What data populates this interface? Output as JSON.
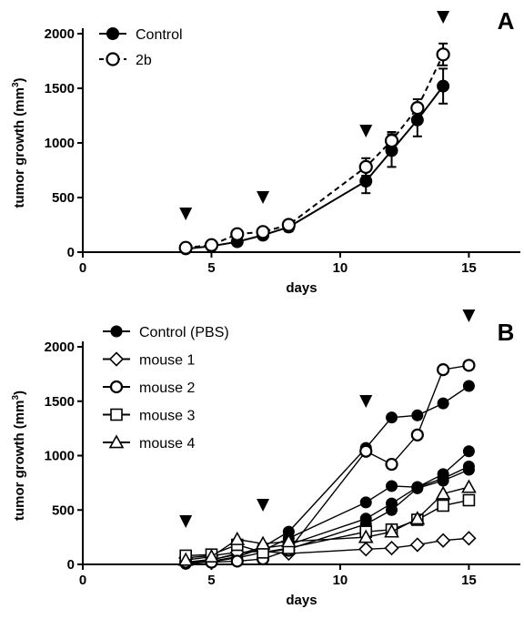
{
  "chart_data": [
    {
      "panel": "A",
      "type": "line",
      "xlabel": "days",
      "ylabel": "tumor growth (mm",
      "ylabel_sup": "3",
      "ylabel_close": ")",
      "xlim": [
        0,
        17
      ],
      "ylim": [
        0,
        2000
      ],
      "xticks": [
        0,
        5,
        10,
        15
      ],
      "yticks": [
        0,
        500,
        1000,
        1500,
        2000
      ],
      "legend_position": "top-left",
      "arrowheads_x": [
        4,
        7,
        11,
        14
      ],
      "series": [
        {
          "name": "Control",
          "marker": "filled-circle",
          "line": "solid",
          "x": [
            4,
            5,
            6,
            7,
            8,
            11,
            12,
            13,
            14
          ],
          "y": [
            30,
            55,
            95,
            155,
            230,
            650,
            930,
            1210,
            1520
          ],
          "err": [
            10,
            10,
            15,
            25,
            40,
            110,
            150,
            150,
            160
          ]
        },
        {
          "name": "2b",
          "marker": "open-circle",
          "line": "dashed",
          "x": [
            4,
            5,
            6,
            7,
            8,
            11,
            12,
            13,
            14
          ],
          "y": [
            40,
            65,
            165,
            185,
            250,
            780,
            1020,
            1320,
            1810
          ],
          "err": [
            10,
            10,
            20,
            30,
            40,
            80,
            80,
            80,
            100
          ]
        }
      ]
    },
    {
      "panel": "B",
      "type": "line",
      "xlabel": "days",
      "ylabel": "tumor growth (mm",
      "ylabel_sup": "3",
      "ylabel_close": ")",
      "xlim": [
        0,
        17
      ],
      "ylim": [
        0,
        2000
      ],
      "xticks": [
        0,
        5,
        10,
        15
      ],
      "yticks": [
        0,
        500,
        1000,
        1500,
        2000
      ],
      "legend_position": "top-left",
      "arrowheads_x": [
        4,
        7,
        11,
        15
      ],
      "legend": [
        {
          "name": "Control (PBS)",
          "marker": "filled-circle"
        },
        {
          "name": "mouse 1",
          "marker": "open-diamond"
        },
        {
          "name": "mouse 2",
          "marker": "open-circle"
        },
        {
          "name": "mouse 3",
          "marker": "open-square"
        },
        {
          "name": "mouse 4",
          "marker": "open-triangle"
        }
      ],
      "series": [
        {
          "marker": "filled-circle",
          "x": [
            4,
            5,
            6,
            7,
            8,
            11,
            12,
            13,
            14,
            15
          ],
          "y": [
            20,
            45,
            90,
            160,
            300,
            1070,
            1350,
            1370,
            1480,
            1640
          ]
        },
        {
          "marker": "filled-circle",
          "x": [
            4,
            5,
            6,
            7,
            8,
            11,
            12,
            13,
            14,
            15
          ],
          "y": [
            10,
            40,
            100,
            130,
            240,
            570,
            720,
            710,
            830,
            1040
          ]
        },
        {
          "marker": "filled-circle",
          "x": [
            4,
            5,
            6,
            7,
            8,
            11,
            12,
            13,
            14,
            15
          ],
          "y": [
            15,
            30,
            70,
            150,
            180,
            420,
            560,
            710,
            790,
            900
          ]
        },
        {
          "marker": "filled-circle",
          "x": [
            4,
            5,
            6,
            7,
            8,
            11,
            12,
            13,
            14,
            15
          ],
          "y": [
            5,
            25,
            60,
            110,
            140,
            370,
            500,
            700,
            770,
            870
          ]
        },
        {
          "marker": "open-diamond",
          "x": [
            4,
            5,
            6,
            7,
            8,
            11,
            12,
            13,
            14,
            15
          ],
          "y": [
            60,
            80,
            110,
            120,
            100,
            140,
            150,
            180,
            220,
            240
          ]
        },
        {
          "marker": "open-circle",
          "x": [
            4,
            5,
            6,
            7,
            8,
            11,
            12,
            13,
            14,
            15
          ],
          "y": [
            20,
            20,
            30,
            50,
            130,
            1040,
            920,
            1190,
            1790,
            1830
          ]
        },
        {
          "marker": "open-square",
          "x": [
            4,
            5,
            6,
            7,
            8,
            11,
            12,
            13,
            14,
            15
          ],
          "y": [
            80,
            90,
            180,
            110,
            150,
            300,
            320,
            410,
            540,
            590
          ]
        },
        {
          "marker": "open-triangle",
          "x": [
            4,
            5,
            6,
            7,
            8,
            11,
            12,
            13,
            14,
            15
          ],
          "y": [
            40,
            70,
            230,
            190,
            210,
            250,
            300,
            420,
            650,
            710
          ]
        }
      ]
    }
  ]
}
